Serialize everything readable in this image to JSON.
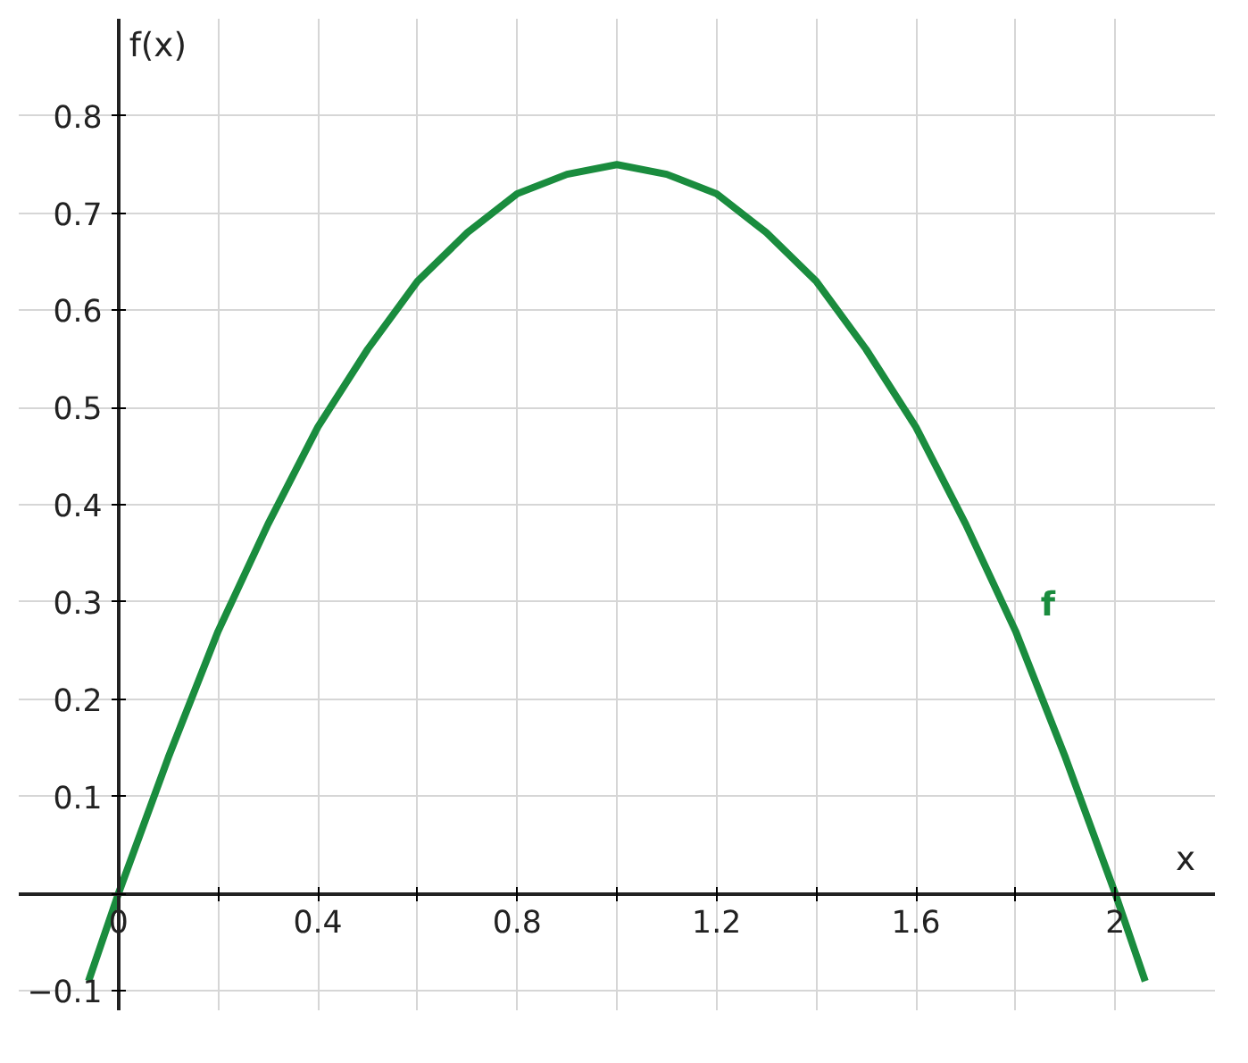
{
  "chart_data": {
    "type": "line",
    "xlabel": "x",
    "ylabel": "f(x)",
    "xlim": [
      -0.2,
      2.2
    ],
    "ylim": [
      -0.12,
      0.9
    ],
    "xticks": [
      0,
      {
        "value": 0.2,
        "label": null
      },
      0.4,
      {
        "value": 0.6,
        "label": null
      },
      0.8,
      {
        "value": 1.0,
        "label": null
      },
      1.2,
      {
        "value": 1.4,
        "label": null
      },
      1.6,
      {
        "value": 1.8,
        "label": null
      },
      2
    ],
    "yticks": [
      {
        "value": -0.1,
        "label": "−0.1"
      },
      {
        "value": 0,
        "label": null
      },
      0.1,
      0.2,
      0.3,
      0.4,
      0.5,
      0.6,
      0.7,
      0.8
    ],
    "grid": true,
    "legend": false,
    "marker": "none",
    "line_style": "solid",
    "series": [
      {
        "name": "f",
        "color": "#1a8c3e",
        "x": [
          -0.06,
          0,
          0.1,
          0.2,
          0.3,
          0.4,
          0.5,
          0.6,
          0.7,
          0.8,
          0.9,
          1.0,
          1.1,
          1.2,
          1.3,
          1.4,
          1.5,
          1.6,
          1.7,
          1.8,
          1.9,
          2.0,
          2.06
        ],
        "values": [
          -0.09,
          0,
          0.14,
          0.27,
          0.38,
          0.48,
          0.56,
          0.63,
          0.68,
          0.72,
          0.74,
          0.75,
          0.74,
          0.72,
          0.68,
          0.63,
          0.56,
          0.48,
          0.38,
          0.27,
          0.14,
          0,
          -0.09
        ]
      }
    ]
  }
}
